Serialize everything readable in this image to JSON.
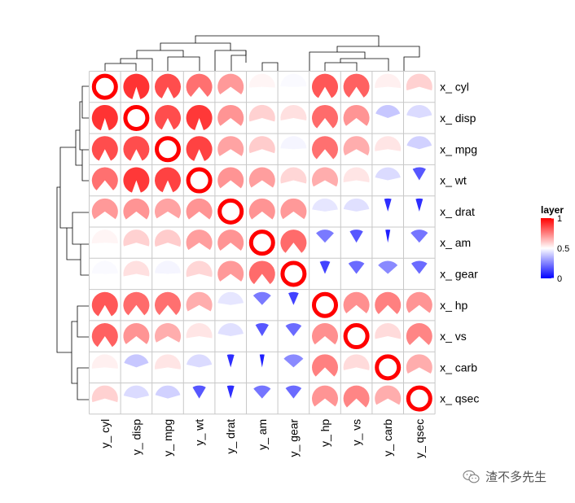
{
  "chart_data": {
    "type": "heatmap",
    "cell_glyph": "circular sector, angle proportional to value; diagonal cells drawn as ring",
    "row_labels": [
      "x_ cyl",
      "x_ disp",
      "x_ mpg",
      "x_ wt",
      "x_ drat",
      "x_ am",
      "x_ gear",
      "x_ hp",
      "x_ vs",
      "x_ carb",
      "x_ qsec"
    ],
    "col_labels": [
      "y_ cyl",
      "y_ disp",
      "y_ mpg",
      "y_ wt",
      "y_ drat",
      "y_ am",
      "y_ gear",
      "y_ hp",
      "y_ vs",
      "y_ carb",
      "y_ qsec"
    ],
    "values": [
      [
        1.0,
        0.9,
        0.85,
        0.78,
        0.7,
        0.52,
        0.49,
        0.83,
        0.81,
        0.53,
        0.59
      ],
      [
        0.9,
        1.0,
        0.85,
        0.89,
        0.71,
        0.59,
        0.56,
        0.79,
        0.71,
        0.39,
        0.43
      ],
      [
        0.85,
        0.85,
        1.0,
        0.87,
        0.68,
        0.6,
        0.48,
        0.78,
        0.66,
        0.55,
        0.41
      ],
      [
        0.78,
        0.89,
        0.87,
        1.0,
        0.71,
        0.69,
        0.58,
        0.66,
        0.55,
        0.43,
        0.17
      ],
      [
        0.7,
        0.71,
        0.68,
        0.71,
        1.0,
        0.71,
        0.7,
        0.45,
        0.44,
        0.09,
        0.09
      ],
      [
        0.52,
        0.59,
        0.6,
        0.69,
        0.71,
        1.0,
        0.79,
        0.24,
        0.17,
        0.06,
        0.23
      ],
      [
        0.49,
        0.56,
        0.48,
        0.58,
        0.7,
        0.79,
        1.0,
        0.13,
        0.21,
        0.27,
        0.21
      ],
      [
        0.83,
        0.79,
        0.78,
        0.66,
        0.45,
        0.24,
        0.13,
        1.0,
        0.72,
        0.75,
        0.71
      ],
      [
        0.81,
        0.71,
        0.66,
        0.55,
        0.44,
        0.17,
        0.21,
        0.72,
        1.0,
        0.57,
        0.74
      ],
      [
        0.53,
        0.39,
        0.55,
        0.43,
        0.09,
        0.06,
        0.27,
        0.75,
        0.57,
        1.0,
        0.66
      ],
      [
        0.59,
        0.43,
        0.41,
        0.17,
        0.09,
        0.23,
        0.21,
        0.71,
        0.74,
        0.66,
        1.0
      ]
    ],
    "color_scale": {
      "title": "layer",
      "min": 0,
      "max": 1,
      "ticks": [
        "1",
        "0.5",
        "0"
      ],
      "low_color": "#0000ff",
      "mid_color": "#ffffff",
      "high_color": "#ff0000"
    },
    "grid_color": "#c8c8c8",
    "row_dendrogram": "left",
    "col_dendrogram": "top"
  },
  "watermark": {
    "text": "渣不多先生",
    "icon": "wechat-icon"
  }
}
